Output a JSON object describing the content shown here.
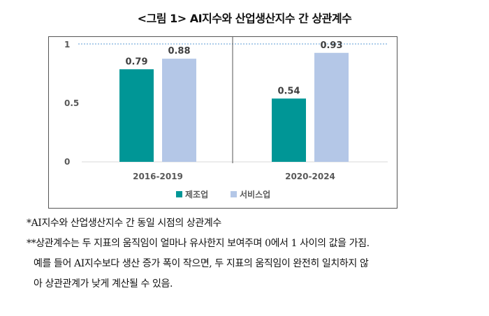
{
  "chart_data": {
    "type": "bar",
    "title": "<그림 1> AI지수와 산업생산지수 간 상관계수",
    "categories": [
      "2016-2019",
      "2020-2024"
    ],
    "series": [
      {
        "name": "제조업",
        "color": "#009696",
        "values": [
          0.79,
          0.54
        ]
      },
      {
        "name": "서비스업",
        "color": "#b4c7e7",
        "values": [
          0.88,
          0.93
        ]
      }
    ],
    "yticks": [
      "0",
      "0.5",
      "1"
    ],
    "ylim": [
      0,
      1
    ],
    "reference_line": 1,
    "legend": "bottom",
    "xlabel": "",
    "ylabel": ""
  },
  "notes": [
    "*AI지수와 산업생산지수 간 동일 시점의 상관계수",
    "**상관계수는 두 지표의 움직임이 얼마나 유사한지 보여주며 0에서 1 사이의 값을 가짐.",
    "예를 들어 AI지수보다 생산 증가 폭이 작으면, 두 지표의 움직임이 완전히 일치하지 않",
    "아 상관관계가 낮게 계산될 수 있음."
  ]
}
